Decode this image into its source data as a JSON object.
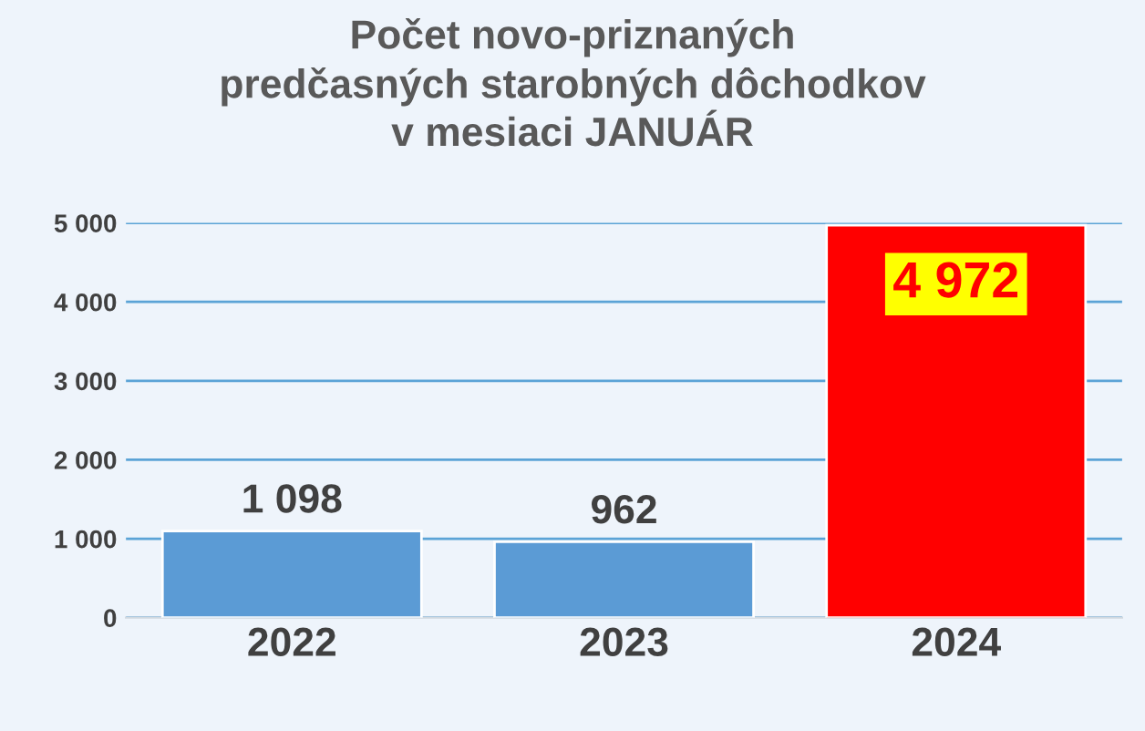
{
  "chart_data": {
    "type": "bar",
    "title": "Počet novo-priznaných\npredčasných starobných dôchodkov\nv mesiaci JANUÁR",
    "categories": [
      "2022",
      "2023",
      "2024"
    ],
    "values": [
      1098,
      962,
      4972
    ],
    "colors": [
      "#5b9bd5",
      "#5b9bd5",
      "#ff0000"
    ],
    "value_labels": [
      "1 098",
      "962",
      null
    ],
    "annotations": [
      {
        "text": "4 972",
        "x": "2024",
        "y": 4972
      }
    ],
    "ylim": [
      0,
      5000
    ],
    "yticks": [
      {
        "value": 0,
        "label": "0"
      },
      {
        "value": 1000,
        "label": "1 000"
      },
      {
        "value": 2000,
        "label": "2 000"
      },
      {
        "value": 3000,
        "label": "3 000"
      },
      {
        "value": 4000,
        "label": "4 000"
      },
      {
        "value": 5000,
        "label": "5 000"
      }
    ],
    "grid": "y"
  }
}
